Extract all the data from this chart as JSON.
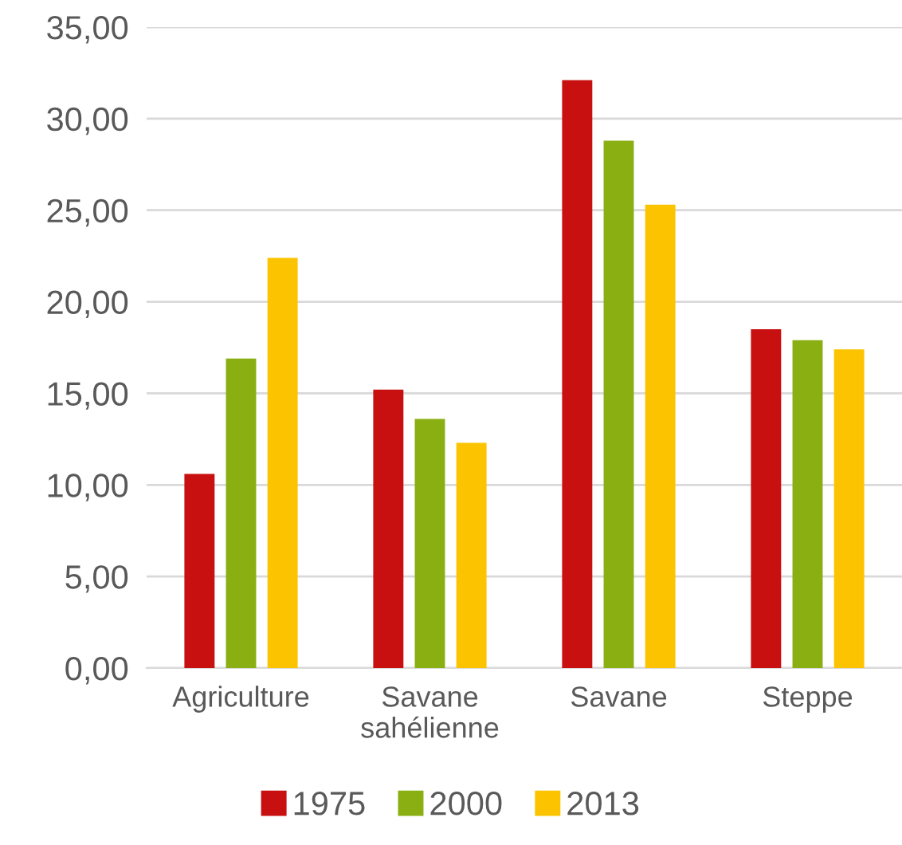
{
  "chart_data": {
    "type": "bar",
    "categories": [
      "Agriculture",
      "Savane\nsahélienne",
      "Savane",
      "Steppe"
    ],
    "series": [
      {
        "name": "1975",
        "color": "#c81010",
        "values": [
          10.6,
          15.2,
          32.1,
          18.5
        ]
      },
      {
        "name": "2000",
        "color": "#8aaf12",
        "values": [
          16.9,
          13.6,
          28.8,
          17.9
        ]
      },
      {
        "name": "2013",
        "color": "#fcc400",
        "values": [
          22.4,
          12.3,
          25.3,
          17.4
        ]
      }
    ],
    "ylim": [
      0,
      35
    ],
    "yticks": [
      {
        "value": 0,
        "label": "0,00"
      },
      {
        "value": 5,
        "label": "5,00"
      },
      {
        "value": 10,
        "label": "10,00"
      },
      {
        "value": 15,
        "label": "15,00"
      },
      {
        "value": 20,
        "label": "20,00"
      },
      {
        "value": 25,
        "label": "25,00"
      },
      {
        "value": 30,
        "label": "30,00"
      },
      {
        "value": 35,
        "label": "35,00"
      }
    ],
    "grid": "y",
    "legend": "bottom"
  }
}
